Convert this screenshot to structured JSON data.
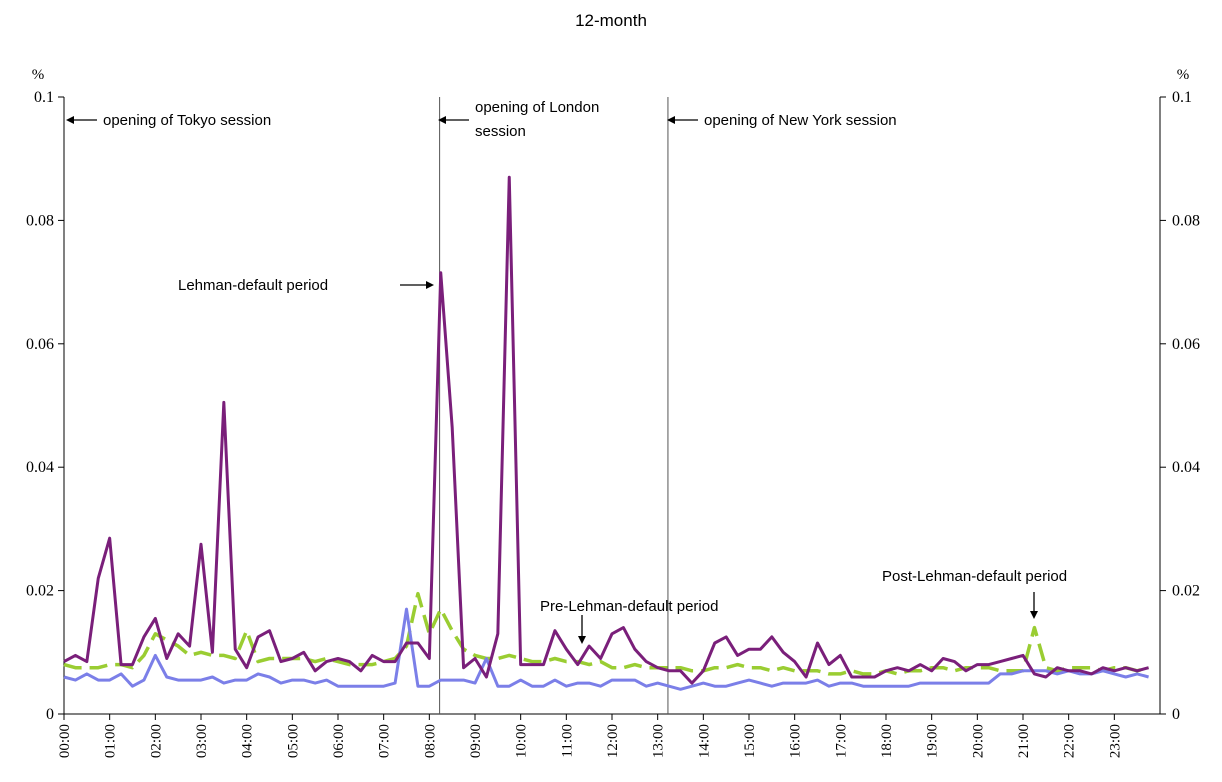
{
  "chart_data": {
    "type": "line",
    "title": "12-month",
    "ylabel_left": "%",
    "ylabel_right": "%",
    "ylim": [
      0,
      0.1
    ],
    "yticks": [
      "0",
      "0.02",
      "0.04",
      "0.06",
      "0.08",
      "0.1"
    ],
    "ytick_values": [
      0,
      0.02,
      0.04,
      0.06,
      0.08,
      0.1
    ],
    "xticks": [
      "00:00",
      "01:00",
      "02:00",
      "03:00",
      "04:00",
      "05:00",
      "06:00",
      "07:00",
      "08:00",
      "09:00",
      "10:00",
      "11:00",
      "12:00",
      "13:00",
      "14:00",
      "15:00",
      "16:00",
      "17:00",
      "18:00",
      "19:00",
      "20:00",
      "21:00",
      "22:00",
      "23:00"
    ],
    "x_interval": "15 min",
    "x_count": 96,
    "session_lines_hours": [
      0,
      8,
      13
    ],
    "annotations": [
      {
        "text": "opening of Tokyo session",
        "arrow": "left"
      },
      {
        "text": "opening of London",
        "text2": "session",
        "arrow": "left"
      },
      {
        "text": "opening of New York session",
        "arrow": "left"
      },
      {
        "text": "Lehman-default period",
        "arrow": "right"
      },
      {
        "text": "Pre-Lehman-default period",
        "arrow": "down"
      },
      {
        "text": "Post-Lehman-default period",
        "arrow": "down"
      }
    ],
    "series": [
      {
        "color": "#7a1f7a",
        "style": "solid",
        "values": [
          0.0085,
          0.0095,
          0.0085,
          0.022,
          0.0285,
          0.008,
          0.008,
          0.0125,
          0.0155,
          0.009,
          0.013,
          0.011,
          0.0275,
          0.01,
          0.0505,
          0.0105,
          0.0075,
          0.0125,
          0.0135,
          0.0085,
          0.009,
          0.01,
          0.007,
          0.0085,
          0.009,
          0.0085,
          0.007,
          0.0095,
          0.0085,
          0.0085,
          0.0115,
          0.0115,
          0.009,
          0.0715,
          0.0465,
          0.0075,
          0.009,
          0.006,
          0.013,
          0.087,
          0.008,
          0.008,
          0.008,
          0.0135,
          0.0105,
          0.008,
          0.011,
          0.009,
          0.013,
          0.014,
          0.0105,
          0.0085,
          0.0075,
          0.007,
          0.007,
          0.005,
          0.007,
          0.0115,
          0.0125,
          0.0095,
          0.0105,
          0.0105,
          0.0125,
          0.01,
          0.0085,
          0.006,
          0.0115,
          0.008,
          0.0095,
          0.006,
          0.006,
          0.006,
          0.007,
          0.0075,
          0.007,
          0.008,
          0.007,
          0.009,
          0.0085,
          0.007,
          0.008,
          0.008,
          0.0085,
          0.009,
          0.0095,
          0.0065,
          0.006,
          0.0075,
          0.007,
          0.007,
          0.0065,
          0.0075,
          0.007,
          0.0075,
          0.007,
          0.0075
        ]
      },
      {
        "color": "#9acd32",
        "style": "dashed",
        "values": [
          0.008,
          0.0075,
          0.0075,
          0.0075,
          0.008,
          0.008,
          0.0075,
          0.0095,
          0.013,
          0.012,
          0.011,
          0.0095,
          0.01,
          0.0095,
          0.0095,
          0.009,
          0.0135,
          0.0085,
          0.009,
          0.009,
          0.009,
          0.009,
          0.0085,
          0.009,
          0.0085,
          0.008,
          0.008,
          0.008,
          0.0085,
          0.009,
          0.011,
          0.0195,
          0.013,
          0.017,
          0.0135,
          0.0105,
          0.0095,
          0.009,
          0.009,
          0.0095,
          0.009,
          0.0085,
          0.0085,
          0.009,
          0.0085,
          0.0085,
          0.008,
          0.0085,
          0.0075,
          0.0075,
          0.008,
          0.0075,
          0.0075,
          0.0075,
          0.0075,
          0.007,
          0.007,
          0.0075,
          0.0075,
          0.008,
          0.0075,
          0.0075,
          0.007,
          0.0075,
          0.007,
          0.007,
          0.007,
          0.0065,
          0.0065,
          0.007,
          0.0065,
          0.0065,
          0.007,
          0.0065,
          0.007,
          0.007,
          0.0075,
          0.0075,
          0.007,
          0.0075,
          0.0075,
          0.0075,
          0.007,
          0.007,
          0.007,
          0.014,
          0.0075,
          0.007,
          0.0075,
          0.0075,
          0.0075,
          0.007,
          0.0075,
          0.0075,
          0.007,
          0.0075
        ]
      },
      {
        "color": "#7b7fe8",
        "style": "solid",
        "values": [
          0.006,
          0.0055,
          0.0065,
          0.0055,
          0.0055,
          0.0065,
          0.0045,
          0.0055,
          0.0095,
          0.006,
          0.0055,
          0.0055,
          0.0055,
          0.006,
          0.005,
          0.0055,
          0.0055,
          0.0065,
          0.006,
          0.005,
          0.0055,
          0.0055,
          0.005,
          0.0055,
          0.0045,
          0.0045,
          0.0045,
          0.0045,
          0.0045,
          0.005,
          0.017,
          0.0045,
          0.0045,
          0.0055,
          0.0055,
          0.0055,
          0.005,
          0.009,
          0.0045,
          0.0045,
          0.0055,
          0.0045,
          0.0045,
          0.0055,
          0.0045,
          0.005,
          0.005,
          0.0045,
          0.0055,
          0.0055,
          0.0055,
          0.0045,
          0.005,
          0.0045,
          0.004,
          0.0045,
          0.005,
          0.0045,
          0.0045,
          0.005,
          0.0055,
          0.005,
          0.0045,
          0.005,
          0.005,
          0.005,
          0.0055,
          0.0045,
          0.005,
          0.005,
          0.0045,
          0.0045,
          0.0045,
          0.0045,
          0.0045,
          0.005,
          0.005,
          0.005,
          0.005,
          0.005,
          0.005,
          0.005,
          0.0065,
          0.0065,
          0.007,
          0.007,
          0.007,
          0.0065,
          0.007,
          0.0065,
          0.0065,
          0.007,
          0.0065,
          0.006,
          0.0065,
          0.006
        ]
      }
    ]
  }
}
